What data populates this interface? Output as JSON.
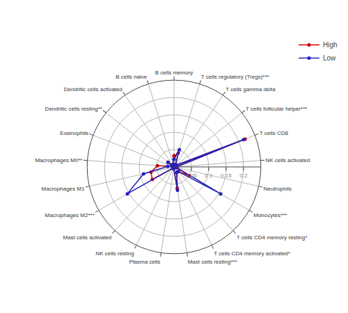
{
  "chart_data": {
    "type": "radar",
    "categories": [
      "B cells memory",
      "T cells regulatory (Tregs)***",
      "T cells gamma delta",
      "T cells follicular helper***",
      "T cells CD8",
      "NK cells activated",
      "Neutrophils",
      "Monocytes***",
      "T cells CD4 memory resting*",
      "T cells CD4 memory activated*",
      "Mast cells resting***",
      "Plasma cells",
      "NK cells resting",
      "Mast cells activated",
      "Macrophages M2***",
      "Macrophages M1",
      "Macrophages M0**",
      "Eosinophils",
      "Dendritic cells resting**",
      "Dendritic cells activated",
      "B cells naive"
    ],
    "series": [
      {
        "name": "High",
        "color": "#cc0000",
        "marker": "circle",
        "line_style": "solid",
        "values": [
          0.032,
          0.042,
          0.008,
          0.008,
          0.22,
          0.008,
          0.008,
          0.05,
          0.018,
          0.018,
          0.062,
          0.005,
          0.005,
          0.005,
          0.072,
          0.068,
          0.048,
          0.005,
          0.022,
          0.005,
          0.008
        ]
      },
      {
        "name": "Low",
        "color": "#2020bb",
        "marker": "circle",
        "line_style": "solid",
        "values": [
          0.022,
          0.052,
          0.008,
          0.008,
          0.215,
          0.008,
          0.008,
          0.155,
          0.018,
          0.018,
          0.068,
          0.005,
          0.005,
          0.005,
          0.155,
          0.09,
          0.018,
          0.005,
          0.022,
          0.005,
          0.008
        ]
      }
    ],
    "ylim": [
      0,
      0.25
    ],
    "yticks": [
      0.05,
      0.1,
      0.15,
      0.2
    ],
    "grid": true,
    "legend": "upper right"
  }
}
